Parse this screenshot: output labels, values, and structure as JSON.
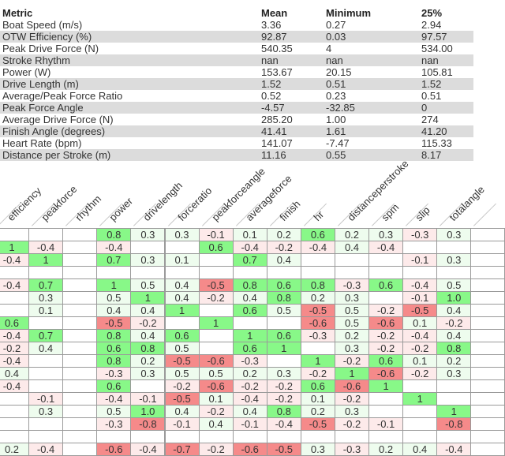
{
  "summary": {
    "headers": [
      "Metric",
      "Mean",
      "Minimum",
      "25%"
    ],
    "rows": [
      [
        "Boat Speed (m/s)",
        "3.36",
        "0.27",
        "2.94"
      ],
      [
        "OTW Efficiency (%)",
        "92.87",
        "0.03",
        "97.57"
      ],
      [
        "Peak Drive Force (N)",
        "540.35",
        "4",
        "534.00"
      ],
      [
        "Stroke Rhythm",
        "nan",
        "nan",
        "nan"
      ],
      [
        "Power (W)",
        "153.67",
        "20.15",
        "105.81"
      ],
      [
        "Drive Length (m)",
        "1.52",
        "0.51",
        "1.52"
      ],
      [
        "Average/Peak Force Ratio",
        "0.52",
        "0.23",
        "0.51"
      ],
      [
        "Peak Force Angle",
        "-4.57",
        "-32.85",
        "0"
      ],
      [
        "Average Drive Force (N)",
        "285.20",
        "1.00",
        "274"
      ],
      [
        "Finish Angle (degrees)",
        "41.41",
        "1.61",
        "41.20"
      ],
      [
        "Heart Rate (bpm)",
        "141.07",
        "-7.47",
        "115.33"
      ],
      [
        "Distance per Stroke (m)",
        "11.16",
        "0.55",
        "8.17"
      ]
    ]
  },
  "correlation": {
    "columns": [
      "efficiency",
      "peakforce",
      "rhythm",
      "power",
      "drivelength",
      "forceratio",
      "peakforceangle",
      "averageforce",
      "finish",
      "hr",
      "distanceperstroke",
      "spm",
      "slip",
      "totalangle"
    ],
    "rows": [
      [
        "",
        "",
        "",
        "0.8",
        "0.3",
        "0.3",
        "-0.1",
        "0.1",
        "0.2",
        "0.6",
        "0.2",
        "0.3",
        "-0.3",
        "0.3"
      ],
      [
        "1",
        "-0.4",
        "",
        "-0.4",
        "",
        "",
        "0.6",
        "-0.4",
        "-0.2",
        "-0.4",
        "0.4",
        "-0.4",
        "",
        ""
      ],
      [
        "-0.4",
        "1",
        "",
        "0.7",
        "0.3",
        "0.1",
        "",
        "0.7",
        "0.4",
        "",
        "",
        "",
        "-0.1",
        "0.3"
      ],
      [
        "",
        "",
        "",
        "",
        "",
        "",
        "",
        "",
        "",
        "",
        "",
        "",
        "",
        ""
      ],
      [
        "-0.4",
        "0.7",
        "",
        "1",
        "0.5",
        "0.4",
        "-0.5",
        "0.8",
        "0.6",
        "0.8",
        "-0.3",
        "0.6",
        "-0.4",
        "0.5"
      ],
      [
        "",
        "0.3",
        "",
        "0.5",
        "1",
        "0.4",
        "-0.2",
        "0.4",
        "0.8",
        "0.2",
        "0.3",
        "",
        "-0.1",
        "1.0"
      ],
      [
        "",
        "0.1",
        "",
        "0.4",
        "0.4",
        "1",
        "",
        "0.6",
        "0.5",
        "-0.5",
        "0.5",
        "-0.2",
        "-0.5",
        "0.4"
      ],
      [
        "0.6",
        "",
        "",
        "-0.5",
        "-0.2",
        "",
        "1",
        "",
        "",
        "-0.6",
        "0.5",
        "-0.6",
        "0.1",
        "-0.2"
      ],
      [
        "-0.4",
        "0.7",
        "",
        "0.8",
        "0.4",
        "0.6",
        "",
        "1",
        "0.6",
        "-0.3",
        "0.2",
        "-0.2",
        "-0.4",
        "0.4"
      ],
      [
        "-0.2",
        "0.4",
        "",
        "0.6",
        "0.8",
        "0.5",
        "",
        "0.6",
        "1",
        "",
        "0.3",
        "-0.2",
        "-0.2",
        "0.8"
      ],
      [
        "-0.4",
        "",
        "",
        "0.8",
        "0.2",
        "-0.5",
        "-0.6",
        "-0.3",
        "",
        "1",
        "-0.2",
        "0.6",
        "0.1",
        "0.2"
      ],
      [
        "0.4",
        "",
        "",
        "-0.3",
        "0.3",
        "0.5",
        "0.5",
        "0.2",
        "0.3",
        "-0.2",
        "1",
        "-0.6",
        "-0.2",
        "0.3"
      ],
      [
        "-0.4",
        "",
        "",
        "0.6",
        "",
        "-0.2",
        "-0.6",
        "-0.2",
        "-0.2",
        "0.6",
        "-0.6",
        "1",
        "",
        ""
      ],
      [
        "",
        "-0.1",
        "",
        "-0.4",
        "-0.1",
        "-0.5",
        "0.1",
        "-0.4",
        "-0.2",
        "0.1",
        "-0.2",
        "",
        "1",
        ""
      ],
      [
        "",
        "0.3",
        "",
        "0.5",
        "1.0",
        "0.4",
        "-0.2",
        "0.4",
        "0.8",
        "0.2",
        "0.3",
        "",
        "",
        "1"
      ],
      [
        "",
        "",
        "",
        "-0.3",
        "-0.8",
        "-0.1",
        "0.4",
        "-0.1",
        "-0.4",
        "-0.5",
        "-0.2",
        "-0.1",
        "",
        "-0.8"
      ],
      [
        "",
        "",
        "",
        "",
        "",
        "",
        "",
        "",
        "",
        "",
        "",
        "",
        "",
        ""
      ],
      [
        "0.2",
        "-0.4",
        "",
        "-0.6",
        "-0.4",
        "-0.7",
        "-0.2",
        "-0.6",
        "-0.5",
        "0.3",
        "-0.3",
        "0.2",
        "0.4",
        "-0.4"
      ]
    ],
    "colors": {
      "strong_positive": "#88f888",
      "weak_positive": "#eefcee",
      "weak_negative": "#fdeaea",
      "strong_negative": "#f58a8a",
      "empty": "#ffffff",
      "border": "#9a9a9a"
    }
  }
}
